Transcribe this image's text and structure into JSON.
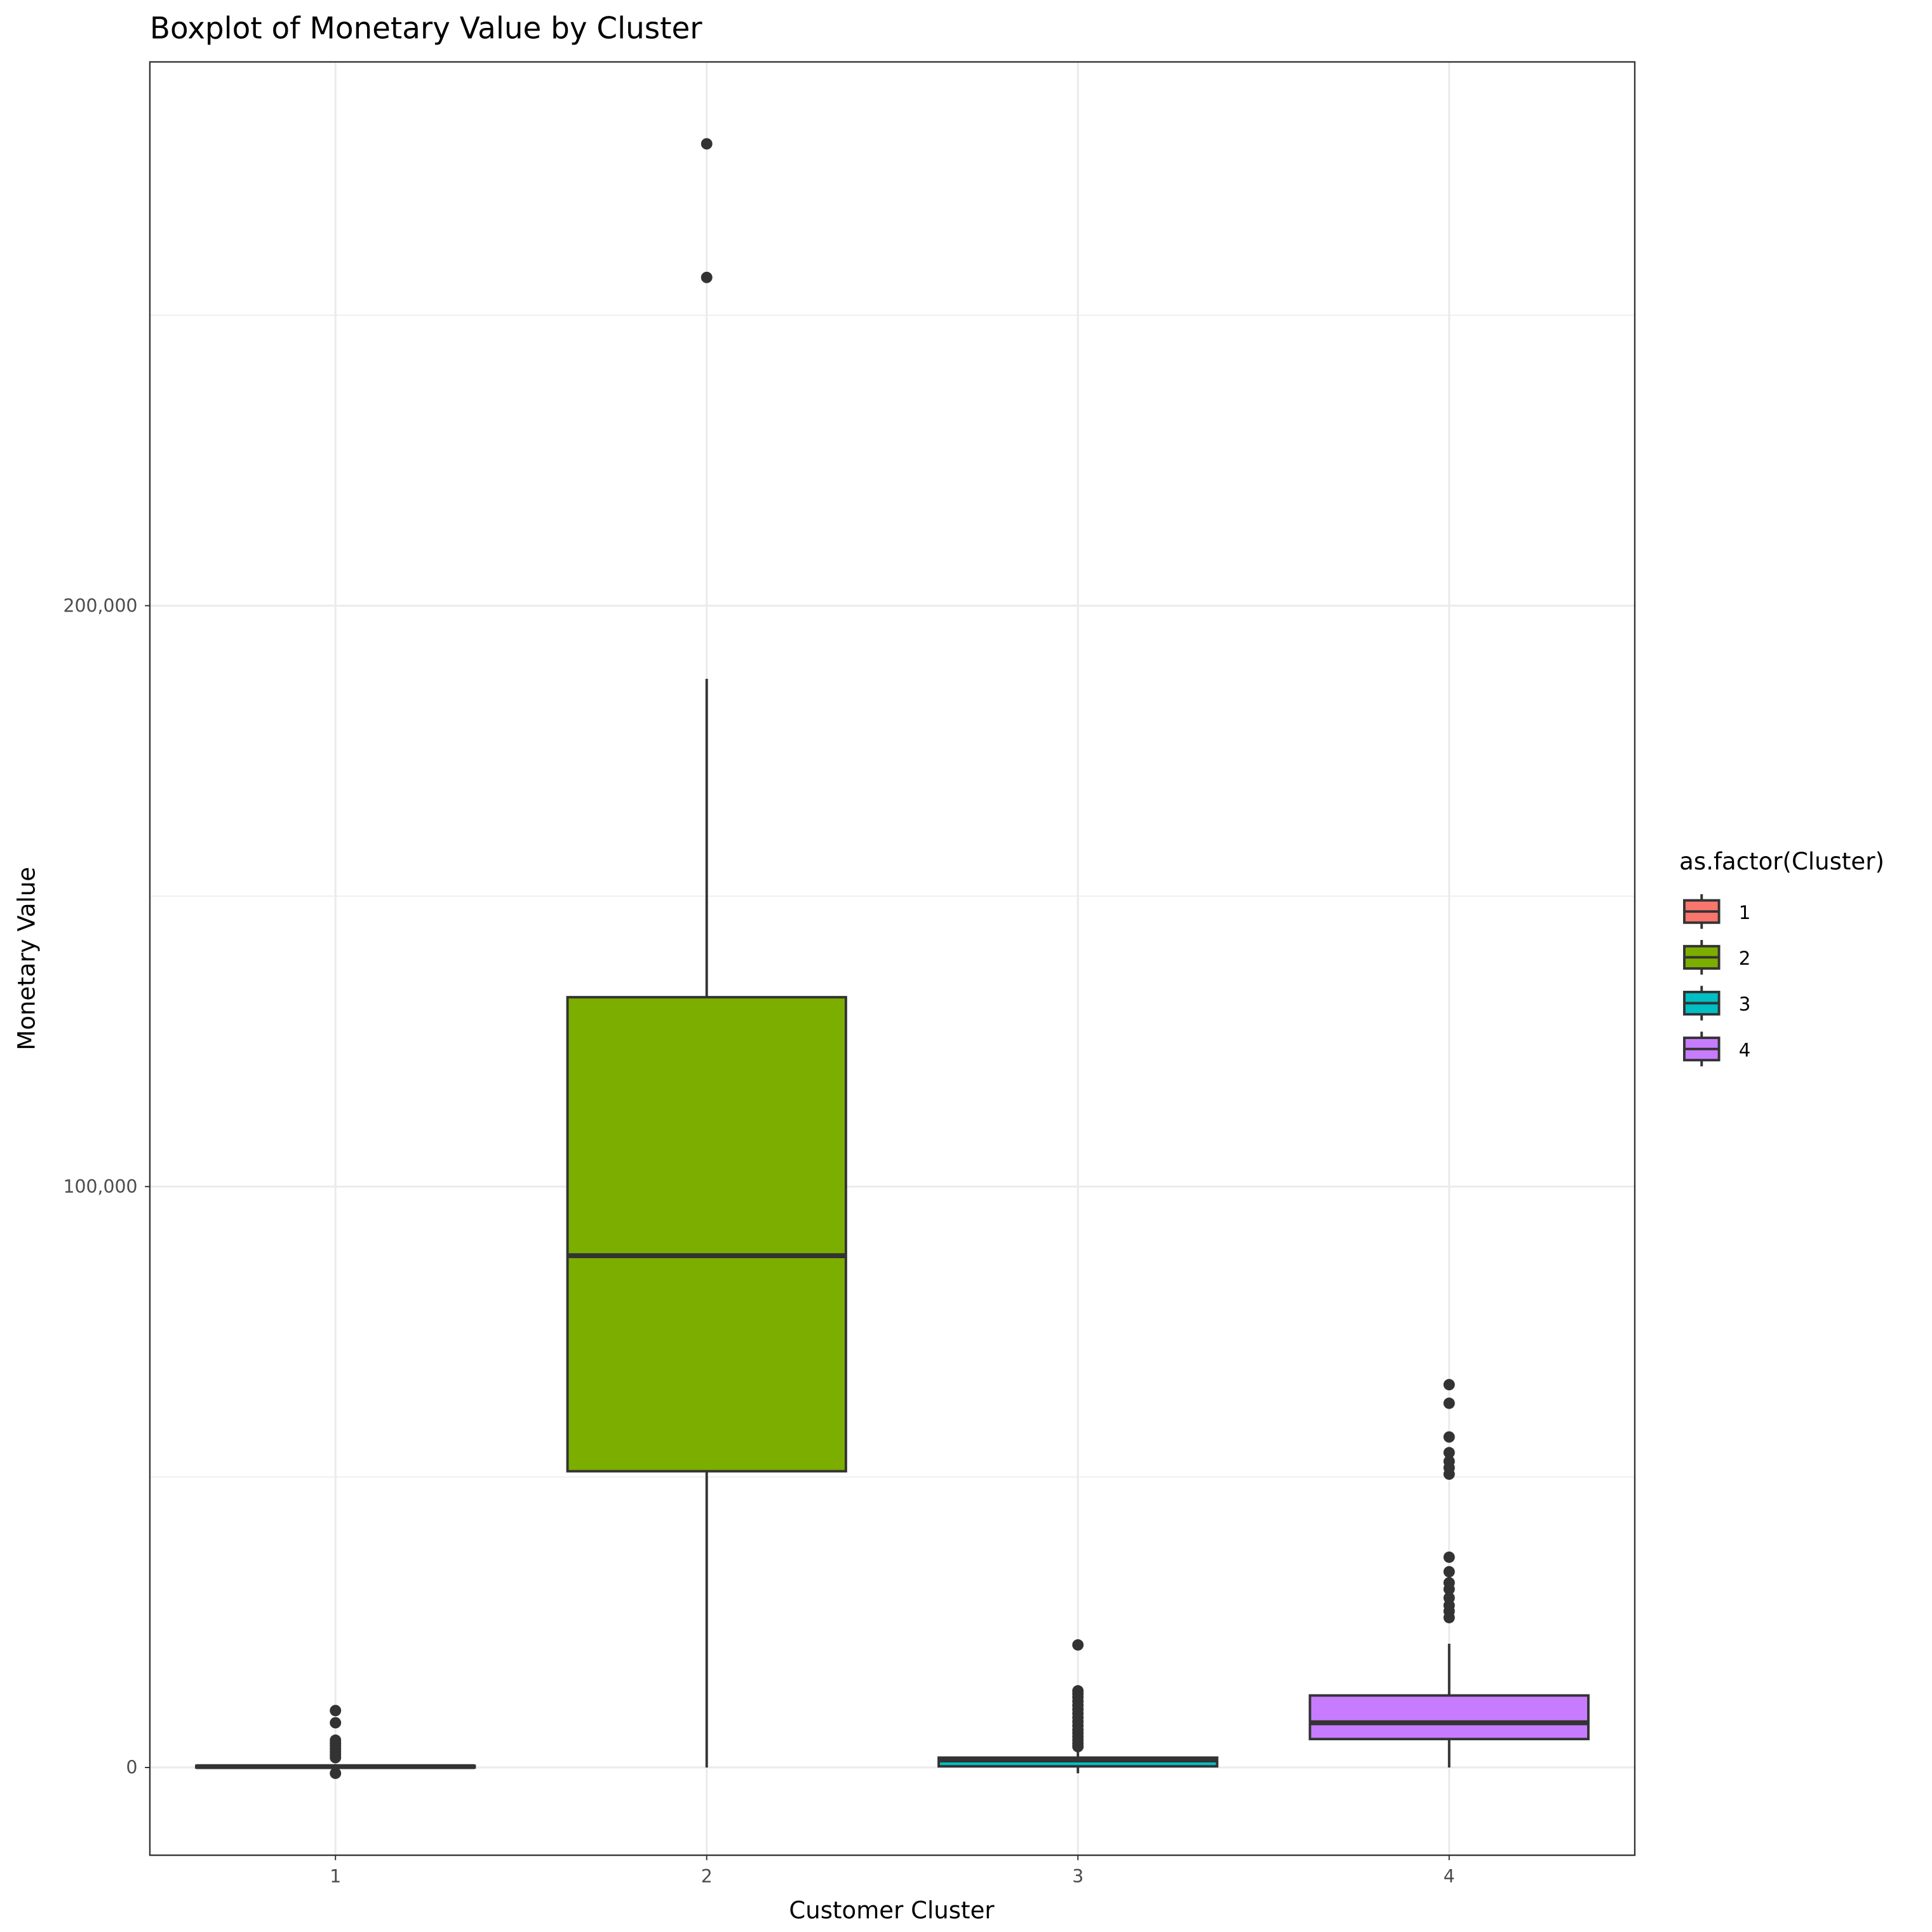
{
  "chart_data": {
    "type": "boxplot",
    "title": "Boxplot of Monetary Value by Cluster",
    "xlabel": "Customer Cluster",
    "ylabel": "Monetary Value",
    "categories": [
      "1",
      "2",
      "3",
      "4"
    ],
    "ylim": [
      -15100,
      293600
    ],
    "y_ticks": [
      0,
      100000,
      200000
    ],
    "y_tick_labels": [
      "0",
      "100,000",
      "200,000"
    ],
    "y_minor_grid": [
      50000,
      150000,
      250000
    ],
    "grid": true,
    "legend": {
      "title": "as.factor(Cluster)",
      "position": "right",
      "entries": [
        {
          "label": "1",
          "color": "#F8766D"
        },
        {
          "label": "2",
          "color": "#7CAE00"
        },
        {
          "label": "3",
          "color": "#00BFC4"
        },
        {
          "label": "4",
          "color": "#C77CFF"
        }
      ]
    },
    "series": [
      {
        "name": "1",
        "color": "#F8766D",
        "whisker_low": 0,
        "q1": 0,
        "median": 150,
        "q3": 300,
        "whisker_high": 600,
        "outliers": [
          9800,
          7700,
          4700,
          4200,
          3700,
          3200,
          2700,
          2200,
          1700,
          -1000
        ]
      },
      {
        "name": "2",
        "color": "#7CAE00",
        "whisker_low": 0,
        "q1": 51000,
        "median": 88100,
        "q3": 132600,
        "whisker_high": 187400,
        "outliers": [
          279500,
          256500
        ]
      },
      {
        "name": "3",
        "color": "#00BFC4",
        "whisker_low": -1000,
        "q1": 200,
        "median": 1300,
        "q3": 1700,
        "whisker_high": 3200,
        "outliers": [
          21100,
          13200,
          12700,
          12100,
          11400,
          10700,
          10000,
          9300,
          8600,
          7900,
          7200,
          6500,
          5900,
          5300,
          4700,
          4100,
          3600
        ]
      },
      {
        "name": "4",
        "color": "#C77CFF",
        "whisker_low": 0,
        "q1": 4900,
        "median": 7700,
        "q3": 12400,
        "whisker_high": 21300,
        "outliers": [
          65900,
          62700,
          56900,
          54200,
          52700,
          51600,
          50500,
          36200,
          33700,
          31800,
          30700,
          29200,
          27900,
          26900,
          25800
        ]
      }
    ]
  }
}
